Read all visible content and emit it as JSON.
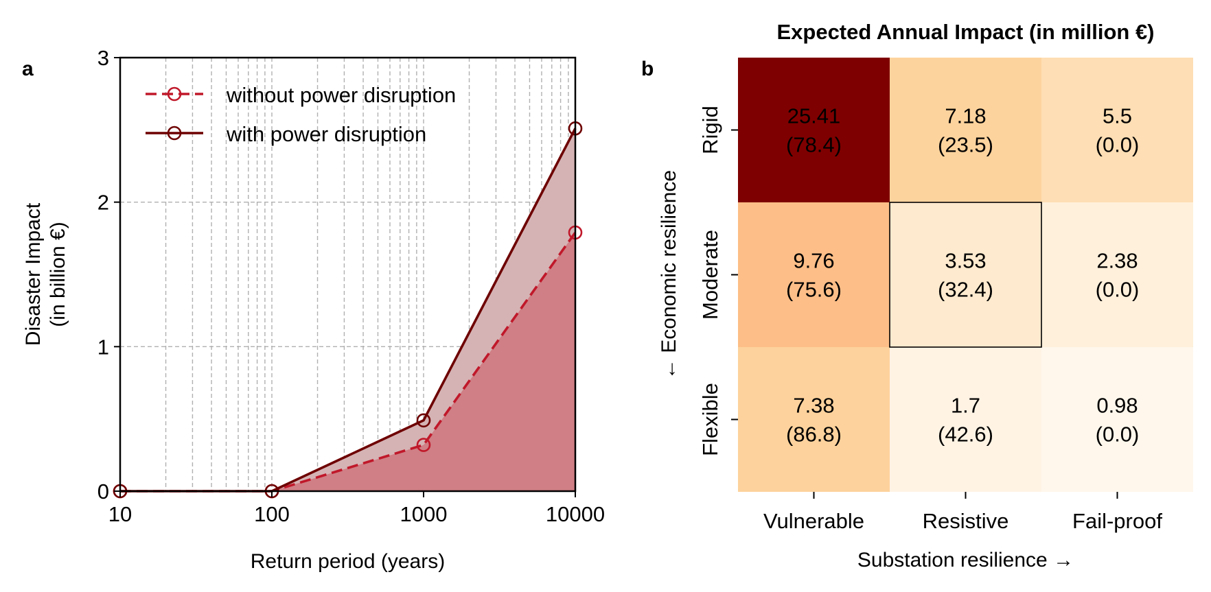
{
  "panel_a": {
    "label": "a",
    "legend": {
      "without": "without power disruption",
      "with": "with power disruption"
    }
  },
  "panel_b": {
    "label": "b"
  },
  "colors": {
    "without_line": "#c0182a",
    "with_line": "#6e0000",
    "fill_without": "#cf7f85",
    "fill_between": "#d5b3b4",
    "grid": "#b0b0b0",
    "heatmap_high": "#7f0000",
    "heatmap_low": "#fff7ec",
    "highlight_border": "#000000"
  },
  "chart_data": [
    {
      "type": "line",
      "title": "",
      "xlabel": "Return period (years)",
      "ylabel": "Disaster Impact\n(in billion €)",
      "xscale": "log",
      "xlim": [
        10,
        10000
      ],
      "ylim": [
        0,
        3
      ],
      "xticks": [
        "10",
        "100",
        "1000",
        "10000"
      ],
      "yticks": [
        "0",
        "1",
        "2",
        "3"
      ],
      "x": [
        10,
        100,
        1000,
        10000
      ],
      "series": [
        {
          "name": "without power disruption",
          "values": [
            0,
            0,
            0.32,
            1.79
          ],
          "style": "dashed",
          "marker": "open-circle"
        },
        {
          "name": "with power disruption",
          "values": [
            0,
            0,
            0.49,
            2.51
          ],
          "style": "solid",
          "marker": "open-circle"
        }
      ],
      "fill": "area under 'without' series and between series shaded",
      "grid": true,
      "legend_position": "top-left"
    },
    {
      "type": "heatmap",
      "title": "Expected Annual Impact (in million €)",
      "xlabel": "Substation resilience →",
      "ylabel": "← Economic resilience",
      "x_categories": [
        "Vulnerable",
        "Resistive",
        "Fail-proof"
      ],
      "y_categories": [
        "Rigid",
        "Moderate",
        "Flexible"
      ],
      "values": [
        [
          25.41,
          7.18,
          5.5
        ],
        [
          9.76,
          3.53,
          2.38
        ],
        [
          7.38,
          1.7,
          0.98
        ]
      ],
      "cell_labels": [
        [
          [
            "25.41",
            "(78.4)"
          ],
          [
            "7.18",
            "(23.5)"
          ],
          [
            "5.5",
            "(0.0)"
          ]
        ],
        [
          [
            "9.76",
            "(75.6)"
          ],
          [
            "3.53",
            "(32.4)"
          ],
          [
            "2.38",
            "(0.0)"
          ]
        ],
        [
          [
            "7.38",
            "(86.8)"
          ],
          [
            "1.7",
            "(42.6)"
          ],
          [
            "0.98",
            "(0.0)"
          ]
        ]
      ],
      "colormap": "OrRd",
      "highlighted_cell": {
        "row": 1,
        "col": 1
      }
    }
  ]
}
